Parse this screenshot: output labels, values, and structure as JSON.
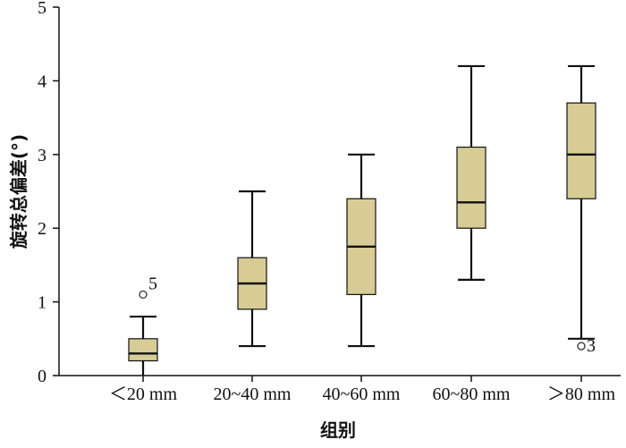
{
  "chart_data": {
    "type": "box",
    "xlabel": "组别",
    "ylabel": "旋转总偏差(°)",
    "ylim": [
      0,
      5
    ],
    "yticks": [
      "0",
      "1",
      "2",
      "3",
      "4",
      "5"
    ],
    "categories": [
      "<20 mm",
      "20~40 mm",
      "40~60 mm",
      "60~80 mm",
      ">80 mm"
    ],
    "box_color": "#d8cc96",
    "series": [
      {
        "category": "<20 mm",
        "min": 0.0,
        "q1": 0.2,
        "median": 0.3,
        "q3": 0.5,
        "max": 0.8,
        "outliers": [
          {
            "value": 1.1,
            "label": "5"
          }
        ]
      },
      {
        "category": "20~40 mm",
        "min": 0.4,
        "q1": 0.9,
        "median": 1.25,
        "q3": 1.6,
        "max": 2.5,
        "outliers": []
      },
      {
        "category": "40~60 mm",
        "min": 0.4,
        "q1": 1.1,
        "median": 1.75,
        "q3": 2.4,
        "max": 3.0,
        "outliers": []
      },
      {
        "category": "60~80 mm",
        "min": 1.3,
        "q1": 2.0,
        "median": 2.35,
        "q3": 3.1,
        "max": 4.2,
        "outliers": []
      },
      {
        "category": ">80 mm",
        "min": 0.5,
        "q1": 2.4,
        "median": 3.0,
        "q3": 3.7,
        "max": 4.2,
        "outliers": [
          {
            "value": 0.4,
            "label": "3"
          }
        ]
      }
    ]
  }
}
